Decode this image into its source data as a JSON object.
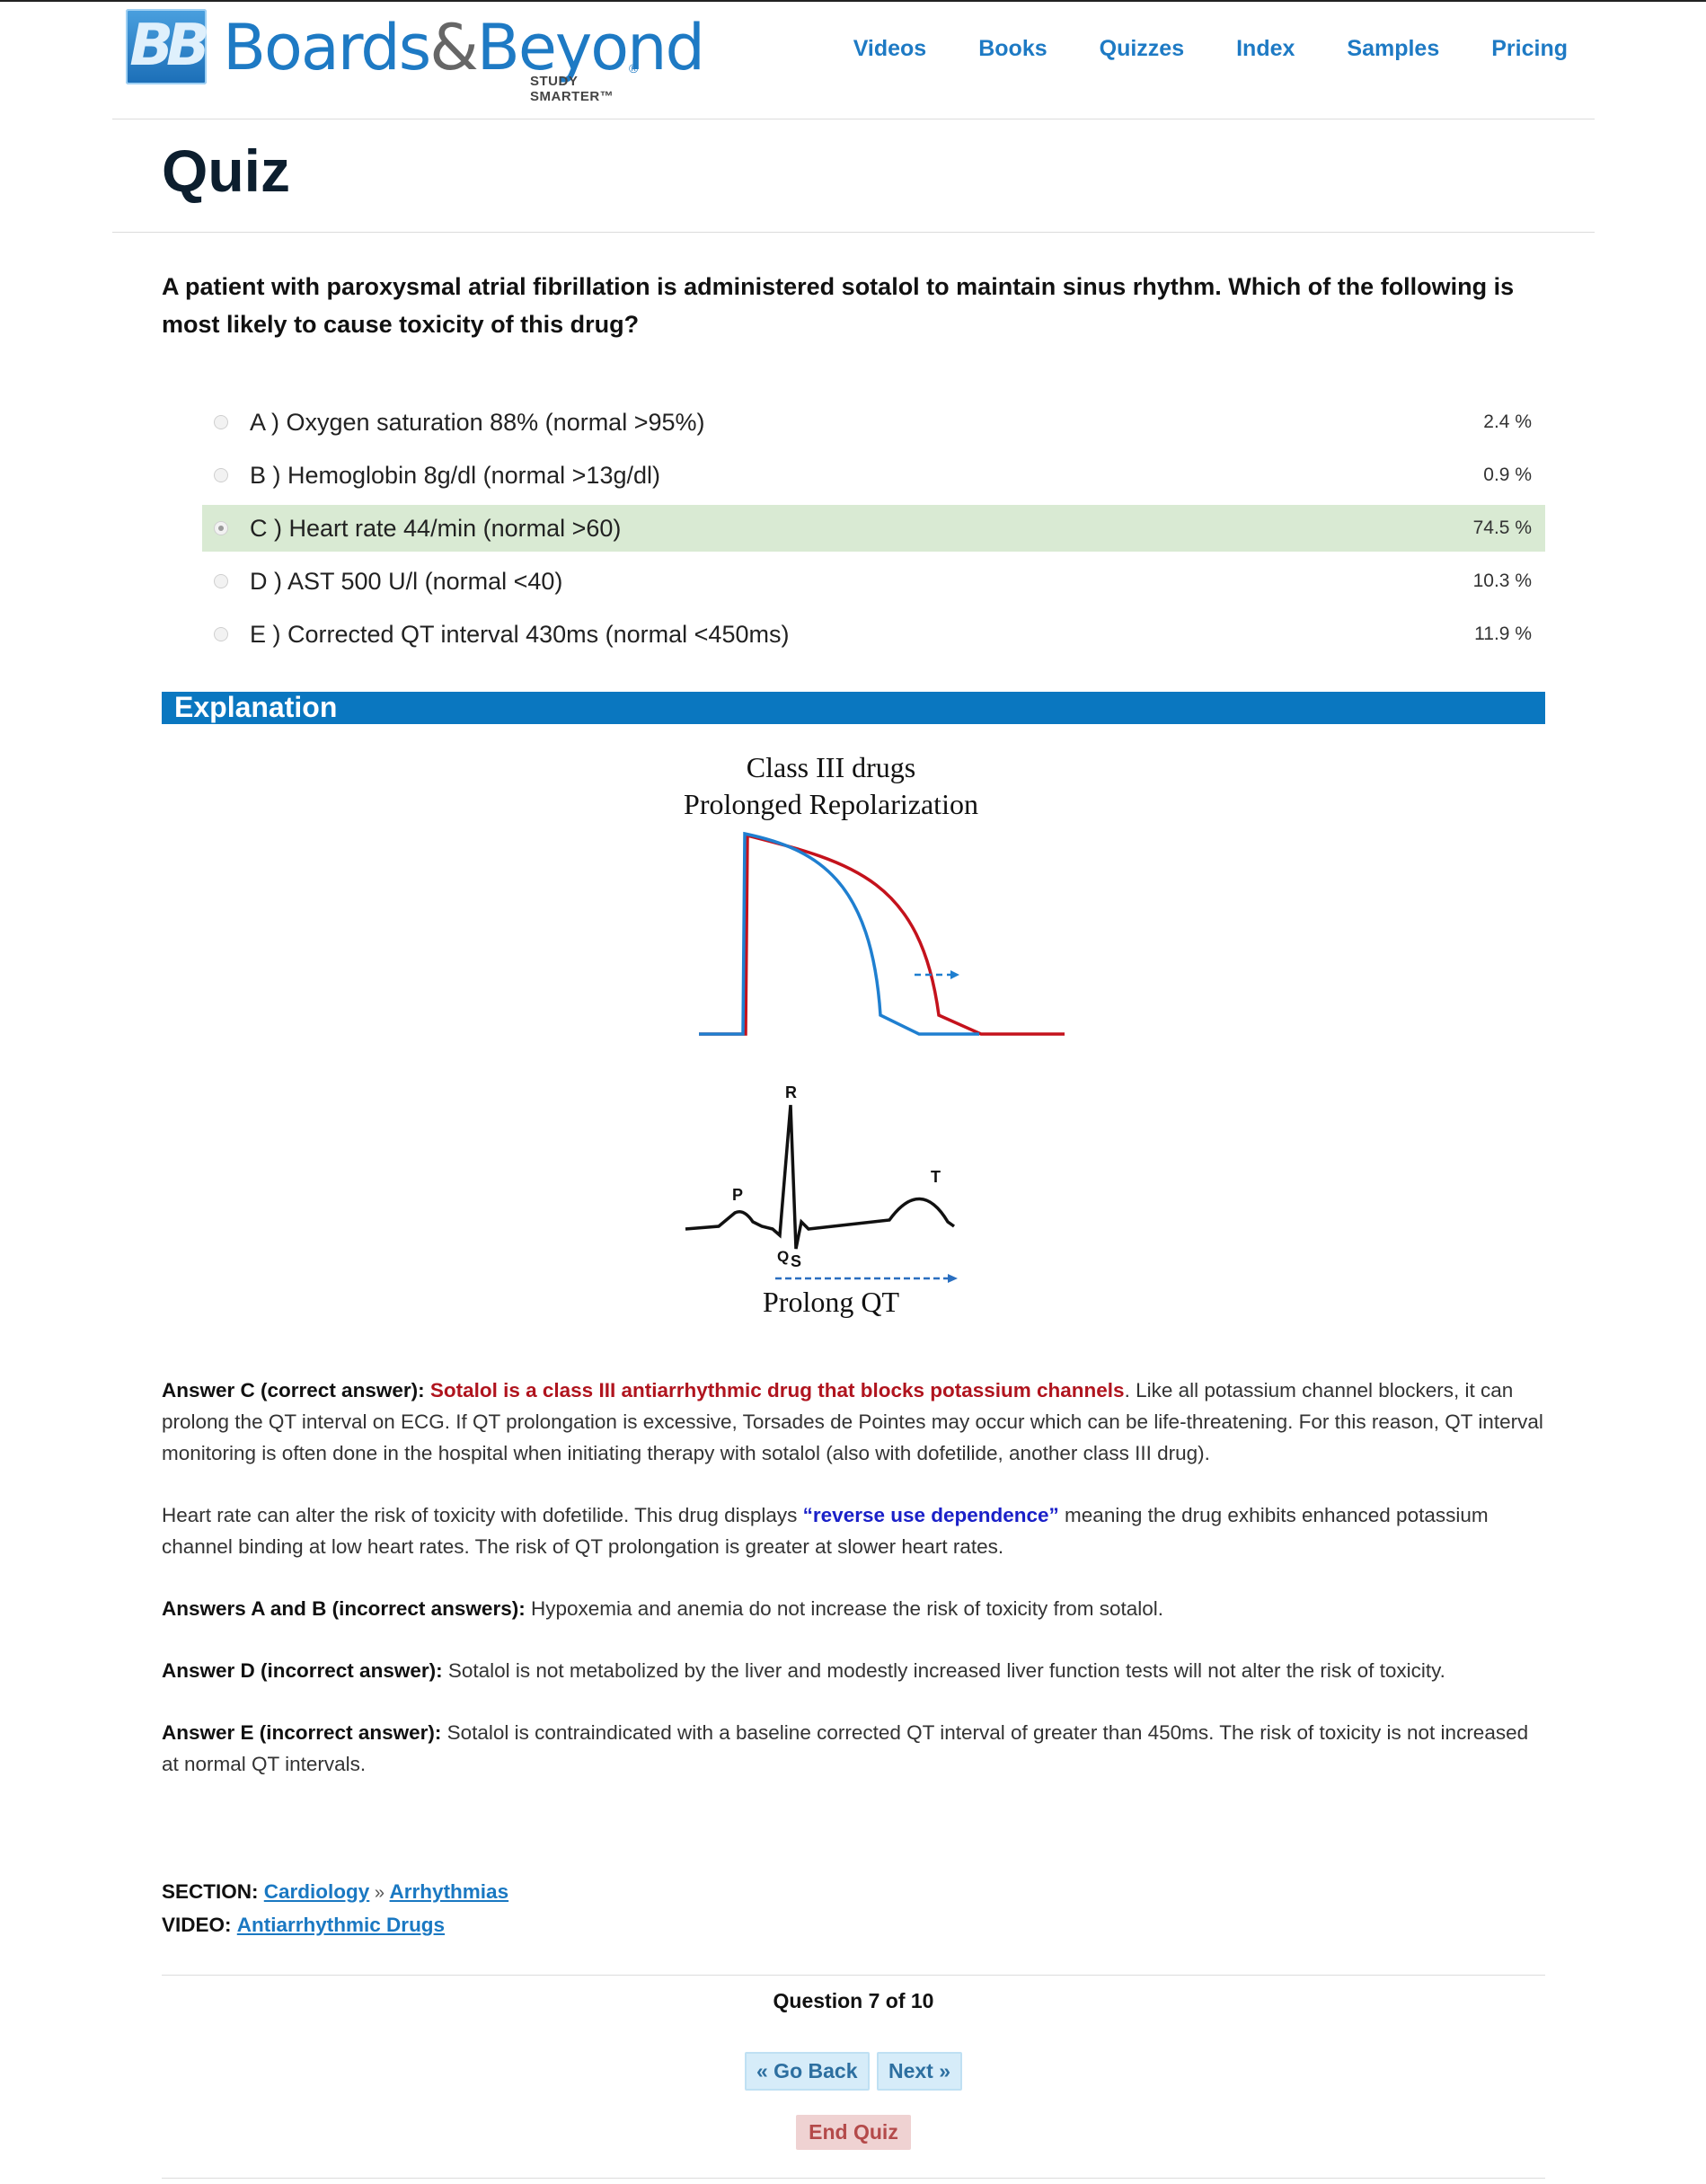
{
  "brand": {
    "logo_mark": "BB",
    "name_part1": "Boards",
    "name_amp": "&",
    "name_part2": "Beyond",
    "registered": "®",
    "tagline": "STUDY SMARTER™"
  },
  "nav": {
    "items": [
      "Videos",
      "Books",
      "Quizzes",
      "Index",
      "Samples",
      "Pricing"
    ]
  },
  "page": {
    "title": "Quiz"
  },
  "question": {
    "text": "A patient with paroxysmal atrial fibrillation is administered sotalol to maintain sinus rhythm. Which of the following is most likely to cause toxicity of this drug?",
    "options": [
      {
        "label": "A ) Oxygen saturation 88% (normal >95%)",
        "percent": "2.4 %",
        "selected": false
      },
      {
        "label": "B ) Hemoglobin 8g/dl (normal >13g/dl)",
        "percent": "0.9 %",
        "selected": false
      },
      {
        "label": "C ) Heart rate 44/min (normal >60)",
        "percent": "74.5 %",
        "selected": true
      },
      {
        "label": "D ) AST 500 U/l (normal <40)",
        "percent": "10.3 %",
        "selected": false
      },
      {
        "label": "E ) Corrected QT interval 430ms (normal <450ms)",
        "percent": "11.9 %",
        "selected": false
      }
    ]
  },
  "explanation": {
    "heading": "Explanation",
    "figure": {
      "title_line1": "Class III drugs",
      "title_line2": "Prolonged Repolarization",
      "ecg_labels": {
        "r": "R",
        "p": "P",
        "t": "T",
        "q": "Q",
        "s": "S"
      },
      "caption": "Prolong QT",
      "colors": {
        "baseline": "#1f7fd0",
        "prolonged": "#c4121c",
        "ecg": "#111111"
      }
    },
    "answer_c_lead": "Answer C (correct answer):",
    "answer_c_highlight": "Sotalol is a class III antiarrhythmic drug that blocks potassium channels",
    "answer_c_rest": ". Like all potassium channel blockers, it can prolong the QT interval on ECG. If QT prolongation is excessive, Torsades de Pointes may occur which can be life-threatening. For this reason, QT interval monitoring is often done in the hospital when initiating therapy with sotalol (also with dofetilide, another class III drug).",
    "p2_start": "Heart rate can alter the risk of toxicity with dofetilide. This drug displays ",
    "p2_highlight": "“reverse use dependence”",
    "p2_end": " meaning the drug exhibits enhanced potassium channel binding at low heart rates. The risk of QT prolongation is greater at slower heart rates.",
    "ab_lead": "Answers A and B (incorrect answers):",
    "ab_text": " Hypoxemia and anemia do not increase the risk of toxicity from sotalol.",
    "d_lead": "Answer D (incorrect answer):",
    "d_text": " Sotalol is not metabolized by the liver and modestly increased liver function tests will not alter the risk of toxicity.",
    "e_lead": "Answer E (incorrect answer):",
    "e_text": " Sotalol is contraindicated with a baseline corrected QT interval of greater than 450ms. The risk of toxicity is not increased at normal QT intervals."
  },
  "meta": {
    "section_label": "SECTION:",
    "section_link1": "Cardiology",
    "section_sep": " » ",
    "section_link2": "Arrhythmias",
    "video_label": "VIDEO:",
    "video_link": "Antiarrhythmic Drugs"
  },
  "pager": {
    "counter": "Question 7 of 10",
    "back_label": "« Go Back",
    "next_label": "Next »",
    "end_label": "End Quiz"
  },
  "colors": {
    "brand_blue": "#1e7ac4",
    "explanation_bar": "#0a77c0",
    "selected_row": "#d9ead3",
    "highlight_red": "#b0141e",
    "highlight_blue": "#1a20c8"
  }
}
